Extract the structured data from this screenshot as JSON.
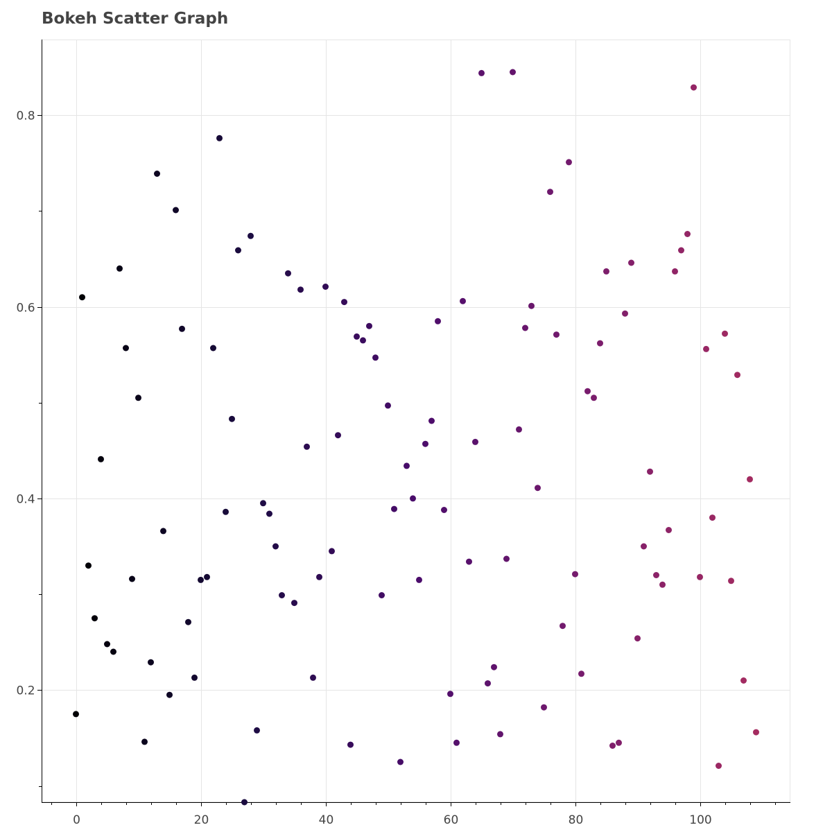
{
  "chart_data": {
    "type": "scatter",
    "title": "Bokeh Scatter Graph",
    "xlabel": "",
    "ylabel": "",
    "xlim": [
      -5.5,
      114.5
    ],
    "ylim": [
      0.083,
      0.879
    ],
    "x_ticks": [
      0,
      20,
      40,
      60,
      80,
      100
    ],
    "y_ticks": [
      0.2,
      0.4,
      0.6,
      0.8
    ],
    "grid": true,
    "legend": "none",
    "color_palette": {
      "start": "#000004",
      "mid1": "#1b0c41",
      "mid2": "#4a0c6b",
      "mid3": "#781c6d",
      "end": "#a52c60"
    },
    "points": {
      "x": [
        0,
        1,
        2,
        3,
        4,
        5,
        6,
        7,
        8,
        9,
        10,
        11,
        12,
        13,
        14,
        15,
        16,
        17,
        18,
        19,
        20,
        21,
        22,
        23,
        24,
        25,
        26,
        27,
        28,
        29,
        30,
        31,
        32,
        33,
        34,
        35,
        36,
        37,
        38,
        39,
        40,
        41,
        42,
        43,
        44,
        45,
        46,
        47,
        48,
        49,
        50,
        51,
        52,
        53,
        54,
        55,
        56,
        57,
        58,
        59,
        60,
        61,
        62,
        63,
        64,
        65,
        66,
        67,
        68,
        69,
        70,
        71,
        72,
        73,
        74,
        75,
        76,
        77,
        78,
        79,
        80,
        81,
        82,
        83,
        84,
        85,
        86,
        87,
        88,
        89,
        90,
        91,
        92,
        93,
        94,
        95,
        96,
        97,
        98,
        99,
        100,
        101,
        102,
        103,
        104,
        105,
        106,
        107,
        108,
        109
      ],
      "y": [
        0.175,
        0.61,
        0.33,
        0.275,
        0.441,
        0.248,
        0.24,
        0.64,
        0.557,
        0.316,
        0.505,
        0.146,
        0.229,
        0.739,
        0.366,
        0.195,
        0.701,
        0.577,
        0.271,
        0.213,
        0.315,
        0.318,
        0.557,
        0.776,
        0.386,
        0.483,
        0.659,
        0.083,
        0.674,
        0.158,
        0.395,
        0.384,
        0.35,
        0.299,
        0.635,
        0.291,
        0.618,
        0.454,
        0.213,
        0.318,
        0.621,
        0.345,
        0.466,
        0.605,
        0.143,
        0.569,
        0.565,
        0.58,
        0.547,
        0.299,
        0.497,
        0.389,
        0.125,
        0.434,
        0.4,
        0.315,
        0.457,
        0.481,
        0.585,
        0.388,
        0.196,
        0.145,
        0.606,
        0.334,
        0.459,
        0.844,
        0.207,
        0.224,
        0.154,
        0.337,
        0.845,
        0.472,
        0.578,
        0.601,
        0.411,
        0.182,
        0.72,
        0.571,
        0.267,
        0.751,
        0.321,
        0.217,
        0.512,
        0.505,
        0.562,
        0.637,
        0.142,
        0.145,
        0.593,
        0.646,
        0.254,
        0.35,
        0.428,
        0.32,
        0.31,
        0.367,
        0.637,
        0.659,
        0.676,
        0.829,
        0.318,
        0.556,
        0.38,
        0.121,
        0.572,
        0.314,
        0.529,
        0.21,
        0.42,
        0.156
      ]
    }
  }
}
